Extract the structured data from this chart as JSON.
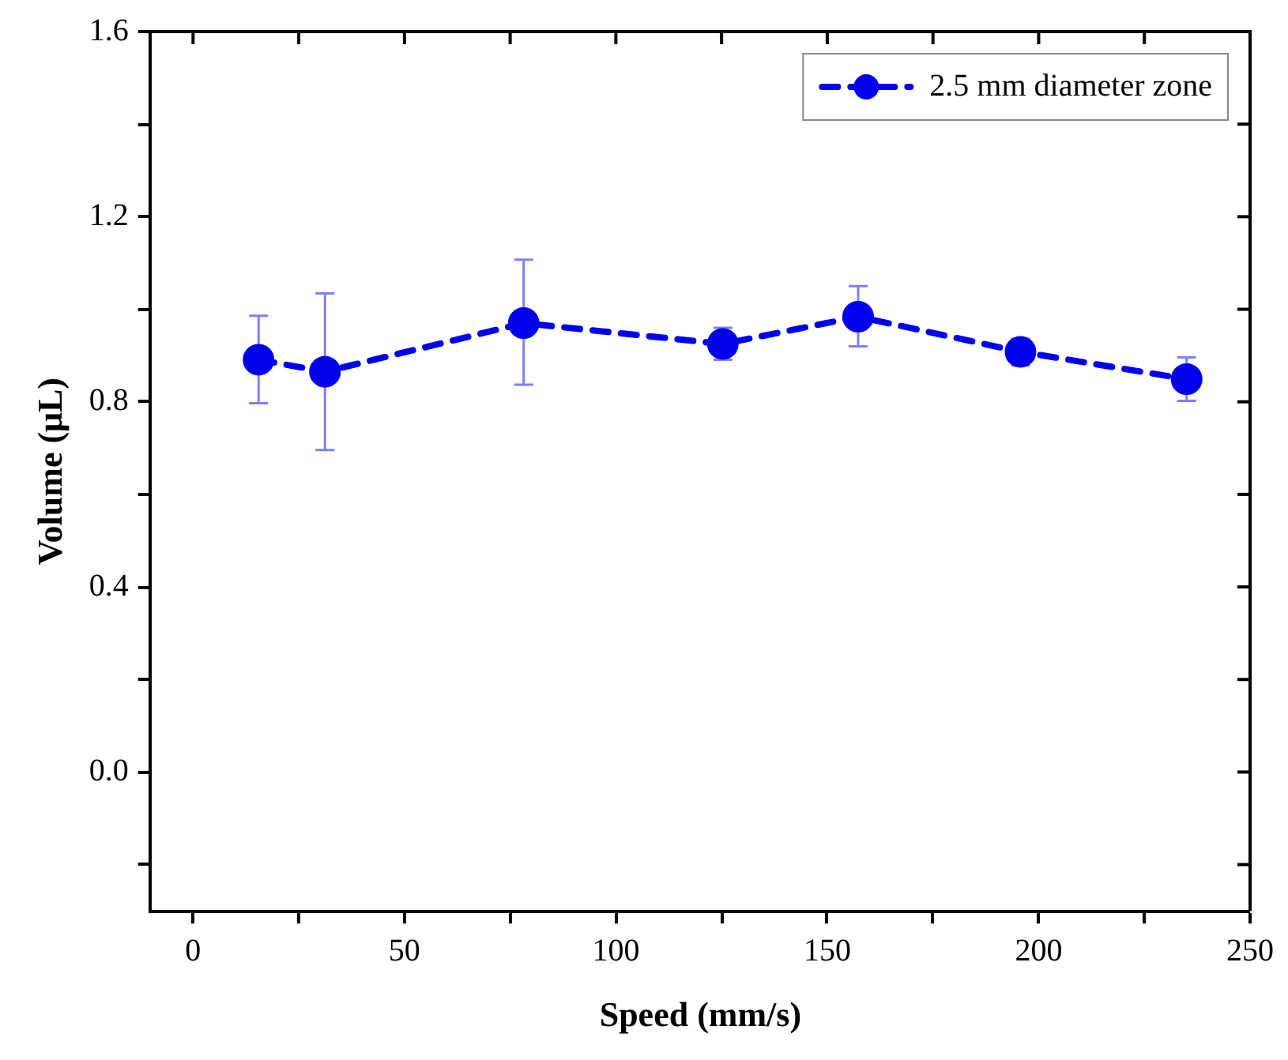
{
  "chart_data": {
    "type": "line",
    "xlabel": "Speed (mm/s)",
    "ylabel": "Volume (μL)",
    "x": [
      15.5,
      31.2,
      78.2,
      125.3,
      157.3,
      195.7,
      235
    ],
    "series": [
      {
        "name": "2.5 mm diameter zone",
        "color": "#0000ee",
        "values": [
          0.891,
          0.865,
          0.97,
          0.925,
          0.984,
          0.908,
          0.849
        ],
        "errors": [
          [
            0.797,
            0.986
          ],
          [
            0.696,
            1.034
          ],
          [
            0.837,
            1.107
          ],
          [
            0.891,
            0.96
          ],
          [
            0.92,
            1.05
          ],
          [
            0.879,
            0.936
          ],
          [
            0.802,
            0.896
          ]
        ]
      }
    ],
    "xlim": [
      -10,
      250
    ],
    "ylim": [
      -0.3,
      1.6
    ],
    "xticks": [
      0,
      {
        "value": 25,
        "label": null
      },
      50,
      {
        "value": 75,
        "label": null
      },
      100,
      {
        "value": 125,
        "label": null
      },
      150,
      {
        "value": 175,
        "label": null
      },
      200,
      {
        "value": 225,
        "label": null
      },
      250
    ],
    "yticks": [
      {
        "value": -0.2,
        "label": null
      },
      {
        "value": 0,
        "label": "0.0"
      },
      {
        "value": 0.2,
        "label": null
      },
      0.4,
      {
        "value": 0.6,
        "label": null
      },
      0.8,
      {
        "value": 1,
        "label": null
      },
      1.2,
      {
        "value": 1.4,
        "label": null
      },
      1.6
    ],
    "grid": false,
    "legend": "top right",
    "marker": "circle",
    "line_style": "dashed"
  }
}
